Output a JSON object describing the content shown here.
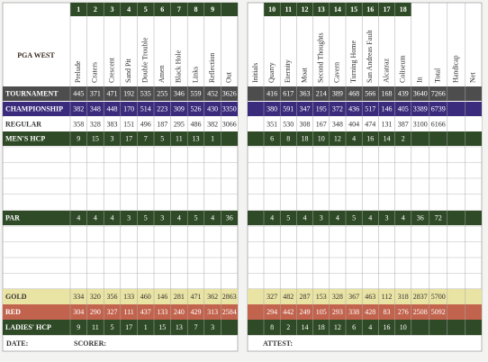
{
  "front": {
    "logo": "PGA WEST",
    "holes": [
      1,
      2,
      3,
      4,
      5,
      6,
      7,
      8,
      9
    ],
    "names": [
      "Prelude",
      "Craters",
      "Crescent",
      "Sand Pit",
      "Double Trouble",
      "Amen",
      "Black Hole",
      "Links",
      "Reflection",
      "Out"
    ],
    "rows": [
      {
        "label": "TOURNAMENT",
        "values": [
          445,
          371,
          471,
          192,
          535,
          255,
          346,
          559,
          452,
          3626
        ]
      },
      {
        "label": "CHAMPIONSHIP",
        "values": [
          382,
          348,
          448,
          170,
          514,
          223,
          309,
          526,
          430,
          3350
        ]
      },
      {
        "label": "REGULAR",
        "values": [
          358,
          328,
          383,
          151,
          496,
          187,
          295,
          486,
          382,
          3066
        ]
      },
      {
        "label": "MEN'S HCP",
        "values": [
          9,
          15,
          3,
          17,
          7,
          5,
          11,
          13,
          1
        ]
      },
      {
        "label": "PAR",
        "values": [
          4,
          4,
          4,
          3,
          5,
          3,
          4,
          5,
          4,
          36
        ]
      },
      {
        "label": "GOLD",
        "values": [
          334,
          320,
          356,
          133,
          460,
          146,
          281,
          471,
          362,
          2863
        ]
      },
      {
        "label": "RED",
        "values": [
          304,
          290,
          327,
          111,
          437,
          133,
          240,
          429,
          313,
          2584
        ]
      },
      {
        "label": "LADIES' HCP",
        "values": [
          9,
          11,
          5,
          17,
          1,
          15,
          13,
          7,
          3
        ]
      }
    ],
    "date": "DATE:",
    "scorer": "SCORER:"
  },
  "back": {
    "holes": [
      10,
      11,
      12,
      13,
      14,
      15,
      16,
      17,
      18
    ],
    "names": [
      "Initials",
      "Quarry",
      "Eternity",
      "Moat",
      "Second Thoughts",
      "Cavern",
      "Turning Home",
      "San Andreas Fault",
      "Alcatraz",
      "Coliseum",
      "In",
      "Total",
      "Handicap",
      "Net"
    ],
    "rows": [
      {
        "values": [
          416,
          617,
          363,
          214,
          389,
          468,
          566,
          168,
          439,
          3640,
          7266
        ]
      },
      {
        "values": [
          380,
          591,
          347,
          195,
          372,
          436,
          517,
          146,
          405,
          3389,
          6739
        ]
      },
      {
        "values": [
          351,
          530,
          308,
          167,
          348,
          404,
          474,
          131,
          387,
          3100,
          6166
        ]
      },
      {
        "values": [
          6,
          8,
          18,
          10,
          12,
          4,
          16,
          14,
          2
        ]
      },
      {
        "values": [
          4,
          5,
          4,
          3,
          4,
          5,
          4,
          3,
          4,
          36,
          72
        ]
      },
      {
        "values": [
          327,
          482,
          287,
          153,
          328,
          367,
          463,
          112,
          318,
          2837,
          5700
        ]
      },
      {
        "values": [
          294,
          442,
          249,
          105,
          293,
          338,
          428,
          83,
          276,
          2508,
          5092
        ]
      },
      {
        "values": [
          8,
          2,
          14,
          18,
          12,
          6,
          4,
          16,
          10
        ]
      }
    ],
    "attest": "ATTEST:"
  }
}
